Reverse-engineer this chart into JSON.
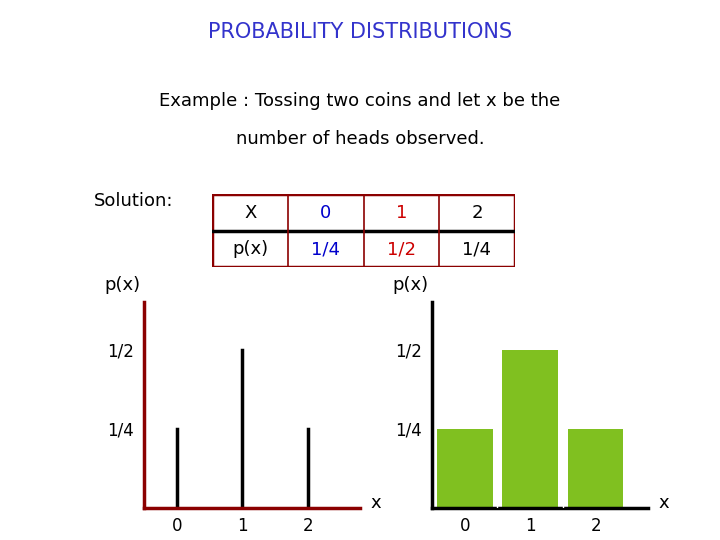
{
  "title": "PROBABILITY DISTRIBUTIONS",
  "title_color": "#3333CC",
  "example_text_line1": "Example : Tossing two coins and let x be the",
  "example_text_line2": "number of heads observed.",
  "solution_text": "Solution:",
  "table_headers": [
    "X",
    "0",
    "1",
    "2"
  ],
  "table_row": [
    "p(x)",
    "1/4",
    "1/2",
    "1/4"
  ],
  "table_header_colors": [
    "black",
    "#0000CC",
    "#CC0000",
    "black"
  ],
  "table_row_colors": [
    "black",
    "#0000CC",
    "#CC0000",
    "black"
  ],
  "table_border_color": "#8B0000",
  "table_divider_color": "black",
  "x_values": [
    0,
    1,
    2
  ],
  "probabilities": [
    0.25,
    0.5,
    0.25
  ],
  "spike_color": "black",
  "bar_color": "#80C020",
  "axis_color_left": "#8B0000",
  "axis_color_right": "black",
  "ylabel": "p(x)",
  "xlabel": "x",
  "ytick_labels": [
    "1/4",
    "1/2"
  ],
  "xtick_labels": [
    "0",
    "1",
    "2"
  ],
  "background_color": "#FFFFFF",
  "font_size_title": 15,
  "font_size_body": 13,
  "font_size_tick": 12
}
